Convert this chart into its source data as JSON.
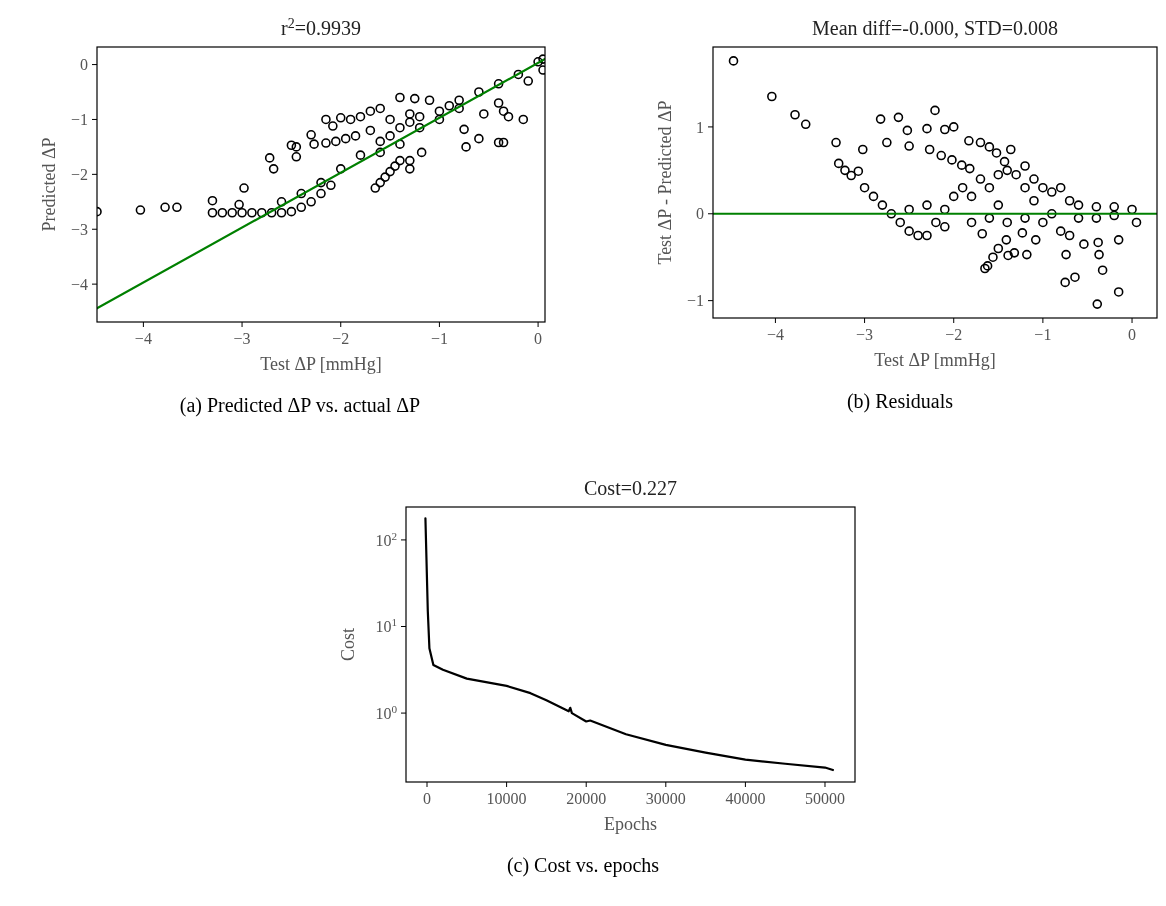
{
  "chart_data": [
    {
      "type": "scatter",
      "title": "r$^{2}$=0.9939",
      "xlabel": "Test ΔP [mmHg]",
      "ylabel": "Predicted ΔP",
      "annotations": [
        "(a) Predicted ΔP vs. actual ΔP"
      ],
      "marker": "circle",
      "xlim": [
        -4.47,
        0.07
      ],
      "ylim": [
        -4.69,
        0.32
      ],
      "xticks": [
        {
          "value": -4,
          "label": "−4"
        },
        {
          "value": -3,
          "label": "−3"
        },
        {
          "value": -2,
          "label": "−2"
        },
        {
          "value": -1,
          "label": "−1"
        },
        0
      ],
      "yticks": [
        {
          "value": 0,
          "label": "0"
        },
        {
          "value": -1,
          "label": "−1"
        },
        {
          "value": -2,
          "label": "−2"
        },
        {
          "value": -3,
          "label": "−3"
        },
        {
          "value": -4,
          "label": "−4"
        }
      ],
      "series": [
        {
          "color": "#000000",
          "x": [
            -4.47,
            -4.03,
            -3.78,
            -3.66,
            -3.3,
            -3.3,
            -3.2,
            -3.1,
            -3.03,
            -3.0,
            -2.9,
            -2.8,
            -2.7,
            -2.6,
            -2.5,
            -2.4,
            -2.3,
            -2.2,
            -2.1,
            -2.98,
            -2.72,
            -2.68,
            -2.5,
            -2.45,
            -2.45,
            -2.3,
            -2.27,
            -2.15,
            -2.08,
            -2.0,
            -1.9,
            -1.8,
            -1.7,
            -1.6,
            -1.4,
            -1.25,
            -1.1,
            -2.15,
            -2.05,
            -1.95,
            -1.85,
            -2.6,
            -2.4,
            -2.2,
            -2.0,
            -1.8,
            -1.6,
            -1.5,
            -1.4,
            -1.3,
            -1.2,
            -1.0,
            -0.9,
            -0.8,
            -0.6,
            -0.4,
            -0.2,
            0.0,
            0.05,
            0.05,
            -1.7,
            -1.5,
            -1.3,
            -1.6,
            -1.4,
            -1.2,
            -1.0,
            -0.8,
            -1.65,
            -1.6,
            -1.55,
            -1.5,
            -1.45,
            -1.4,
            -1.3,
            -1.3,
            -1.18,
            -0.75,
            -0.73,
            -0.6,
            -0.4,
            -0.35,
            -0.15,
            -0.4,
            -0.35,
            -0.3,
            -0.55,
            -0.1
          ],
          "values": [
            -2.68,
            -2.65,
            -2.6,
            -2.6,
            -2.48,
            -2.7,
            -2.7,
            -2.7,
            -2.55,
            -2.7,
            -2.7,
            -2.7,
            -2.7,
            -2.7,
            -2.68,
            -2.6,
            -2.5,
            -2.35,
            -2.2,
            -2.25,
            -1.7,
            -1.9,
            -1.47,
            -1.5,
            -1.68,
            -1.28,
            -1.45,
            -1.0,
            -1.12,
            -0.97,
            -1.0,
            -0.95,
            -0.85,
            -0.8,
            -0.6,
            -0.62,
            -0.65,
            -1.43,
            -1.4,
            -1.35,
            -1.3,
            -2.5,
            -2.35,
            -2.15,
            -1.9,
            -1.65,
            -1.4,
            -1.3,
            -1.15,
            -1.05,
            -0.95,
            -0.85,
            -0.75,
            -0.65,
            -0.5,
            -0.35,
            -0.18,
            0.05,
            -0.1,
            0.1,
            -1.2,
            -1.0,
            -0.9,
            -1.6,
            -1.45,
            -1.15,
            -1.0,
            -0.8,
            -2.25,
            -2.15,
            -2.05,
            -1.95,
            -1.85,
            -1.75,
            -1.75,
            -1.9,
            -1.6,
            -1.18,
            -1.5,
            -1.35,
            -1.42,
            -1.42,
            -1.0,
            -0.7,
            -0.85,
            -0.95,
            -0.9,
            -0.3
          ]
        },
        {
          "type": "line",
          "marker": "none",
          "color": "#008000",
          "x": [
            -4.47,
            0.07
          ],
          "values": [
            -4.44,
            0.1
          ]
        }
      ]
    },
    {
      "type": "scatter",
      "title": "Mean diff=-0.000, STD=0.008",
      "xlabel": "Test ΔP [mmHg]",
      "ylabel": "Test ΔP - Predicted ΔP",
      "annotations": [
        "(b) Residuals"
      ],
      "marker": "circle",
      "xlim": [
        -4.7,
        0.28
      ],
      "ylim": [
        -1.2,
        1.92
      ],
      "xticks": [
        {
          "value": -4,
          "label": "−4"
        },
        {
          "value": -3,
          "label": "−3"
        },
        {
          "value": -2,
          "label": "−2"
        },
        {
          "value": -1,
          "label": "−1"
        },
        0
      ],
      "yticks": [
        1,
        {
          "value": 0,
          "label": "0"
        },
        {
          "value": -1,
          "label": "−1"
        }
      ],
      "ref_lines": [
        {
          "axis": "y",
          "value": 0,
          "color": "#008000"
        }
      ],
      "series": [
        {
          "color": "#000000",
          "x": [
            -4.47,
            -4.04,
            -3.78,
            -3.66,
            -3.32,
            -3.29,
            -3.22,
            -3.15,
            -3.07,
            -3.02,
            -3.0,
            -2.82,
            -2.75,
            -2.62,
            -2.52,
            -2.5,
            -2.3,
            -2.27,
            -2.21,
            -2.14,
            -2.1,
            -2.0,
            -2.02,
            -1.91,
            -1.83,
            -1.82,
            -1.7,
            -1.6,
            -1.52,
            -1.43,
            -1.36,
            -1.2,
            -1.1,
            -2.9,
            -2.8,
            -2.7,
            -2.6,
            -2.5,
            -2.4,
            -2.3,
            -2.2,
            -2.5,
            -2.3,
            -2.1,
            -2.0,
            -1.9,
            -1.8,
            -1.7,
            -1.6,
            -1.5,
            -1.4,
            -1.3,
            -1.2,
            -1.0,
            -0.9,
            -0.8,
            -0.7,
            -0.6,
            -0.4,
            -0.2,
            0.0,
            -1.8,
            -1.6,
            -1.4,
            -1.2,
            -1.0,
            -0.8,
            -0.6,
            -0.4,
            -0.2,
            0.05,
            -2.1,
            -1.5,
            -1.1,
            -0.9,
            -0.7,
            -1.65,
            -1.62,
            -1.56,
            -1.5,
            -1.41,
            -1.39,
            -1.32,
            -1.68,
            -1.18,
            -1.23,
            -1.08,
            -0.75,
            -0.74,
            -0.64,
            -0.54,
            -0.39,
            -0.38,
            -0.37,
            -0.33,
            -0.15,
            -0.15
          ],
          "values": [
            1.76,
            1.35,
            1.14,
            1.03,
            0.82,
            0.58,
            0.5,
            0.44,
            0.49,
            0.74,
            0.3,
            1.09,
            0.82,
            1.11,
            0.96,
            0.78,
            0.98,
            0.74,
            1.19,
            0.67,
            0.97,
            1.0,
            0.62,
            0.56,
            0.84,
            0.52,
            0.82,
            0.77,
            0.7,
            0.6,
            0.74,
            0.55,
            0.4,
            0.2,
            0.1,
            0.0,
            -0.1,
            -0.2,
            -0.25,
            -0.25,
            -0.1,
            0.05,
            0.1,
            0.05,
            0.2,
            0.3,
            0.2,
            0.4,
            0.3,
            0.45,
            0.5,
            0.45,
            0.3,
            0.3,
            0.25,
            0.3,
            0.15,
            0.1,
            0.08,
            0.08,
            0.05,
            -0.1,
            -0.05,
            -0.1,
            -0.05,
            -0.1,
            -0.2,
            -0.05,
            -0.05,
            -0.02,
            -0.1,
            -0.15,
            0.1,
            0.15,
            0.0,
            -0.25,
            -0.63,
            -0.6,
            -0.5,
            -0.4,
            -0.3,
            -0.48,
            -0.45,
            -0.23,
            -0.47,
            -0.22,
            -0.3,
            -0.79,
            -0.47,
            -0.73,
            -0.35,
            -1.04,
            -0.33,
            -0.47,
            -0.65,
            -0.9,
            -0.3
          ]
        }
      ]
    },
    {
      "type": "line",
      "title": "Cost=0.227",
      "xlabel": "Epochs",
      "ylabel": "Cost",
      "annotations": [
        "(c) Cost vs. epochs"
      ],
      "log": "y",
      "xlim": [
        -2640,
        53770
      ],
      "ylim": [
        0.16,
        240
      ],
      "xticks": [
        {
          "value": 0,
          "label": "0"
        },
        10000,
        20000,
        30000,
        40000,
        50000
      ],
      "yticks": [
        {
          "value": 1,
          "label": "10$^{0}$"
        },
        {
          "value": 10,
          "label": "10$^{1}$"
        },
        {
          "value": 100,
          "label": "10$^{2}$"
        }
      ],
      "series": [
        {
          "color": "#000000",
          "x": [
            -200,
            100,
            300,
            800,
            2000,
            5000,
            10000,
            13000,
            15000,
            17800,
            18000,
            18200,
            20000,
            20500,
            25000,
            30000,
            35000,
            40000,
            45000,
            50000,
            51000
          ],
          "values": [
            178,
            15,
            5.6,
            3.6,
            3.16,
            2.5,
            2.06,
            1.7,
            1.41,
            1.05,
            1.15,
            1.0,
            0.8,
            0.82,
            0.57,
            0.43,
            0.35,
            0.29,
            0.26,
            0.235,
            0.22
          ]
        }
      ]
    }
  ]
}
